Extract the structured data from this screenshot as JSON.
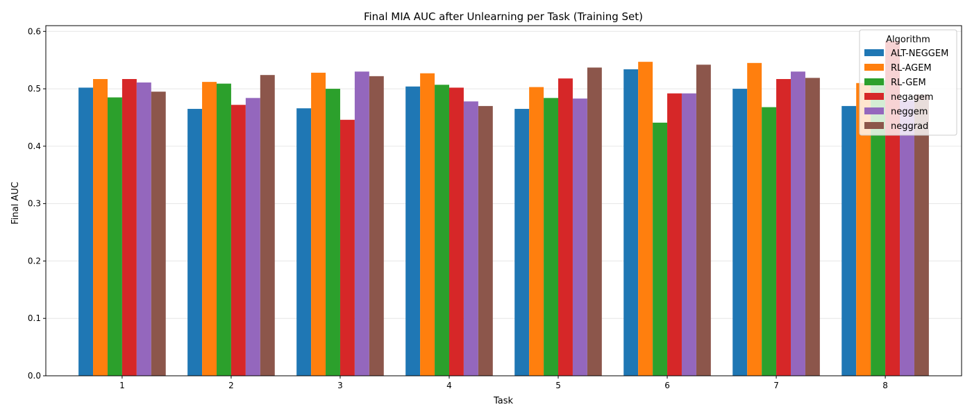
{
  "chart_data": {
    "type": "bar",
    "title": "Final MIA AUC after Unlearning per Task (Training Set)",
    "xlabel": "Task",
    "ylabel": "Final AUC",
    "categories": [
      "1",
      "2",
      "3",
      "4",
      "5",
      "6",
      "7",
      "8"
    ],
    "ylim": [
      0,
      0.61
    ],
    "yticks": [
      "0.0",
      "0.1",
      "0.2",
      "0.3",
      "0.4",
      "0.5",
      "0.6"
    ],
    "grid": "horizontal",
    "legend_title": "Algorithm",
    "legend_position": "top-right",
    "series": [
      {
        "name": "ALT-NEGGEM",
        "color": "#1f77b4",
        "values": [
          0.502,
          0.465,
          0.466,
          0.504,
          0.465,
          0.534,
          0.5,
          0.47
        ]
      },
      {
        "name": "RL-AGEM",
        "color": "#ff7f0e",
        "values": [
          0.517,
          0.512,
          0.528,
          0.527,
          0.503,
          0.547,
          0.545,
          0.51
        ]
      },
      {
        "name": "RL-GEM",
        "color": "#2ca02c",
        "values": [
          0.485,
          0.509,
          0.5,
          0.507,
          0.484,
          0.441,
          0.468,
          0.515
        ]
      },
      {
        "name": "negagem",
        "color": "#d62728",
        "values": [
          0.517,
          0.472,
          0.446,
          0.502,
          0.518,
          0.492,
          0.517,
          0.583
        ]
      },
      {
        "name": "neggem",
        "color": "#9467bd",
        "values": [
          0.511,
          0.484,
          0.53,
          0.478,
          0.483,
          0.492,
          0.53,
          0.48
        ]
      },
      {
        "name": "neggrad",
        "color": "#8c564b",
        "values": [
          0.495,
          0.524,
          0.522,
          0.47,
          0.537,
          0.542,
          0.519,
          0.49
        ]
      }
    ]
  }
}
